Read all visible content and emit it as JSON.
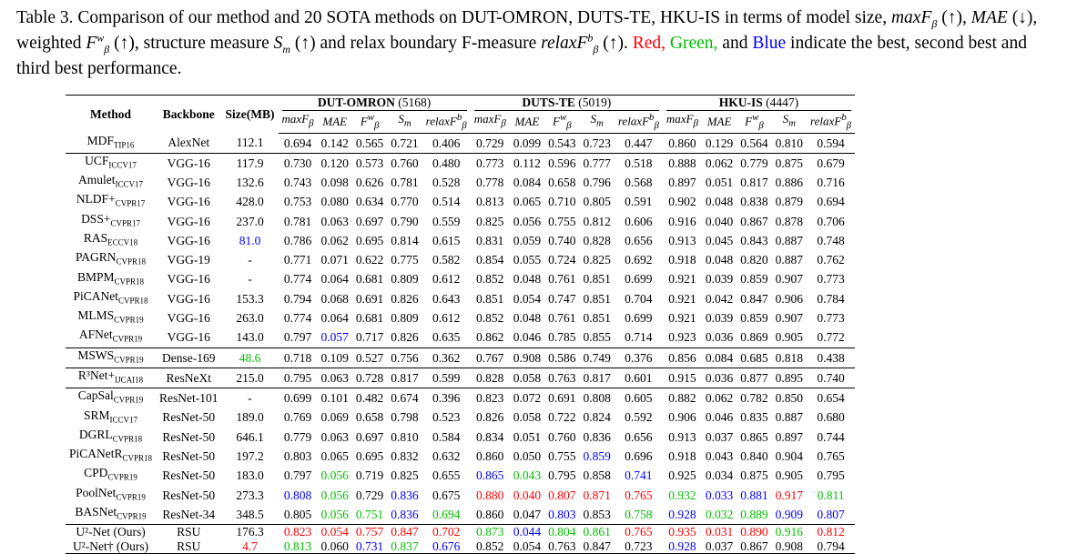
{
  "caption": {
    "lead": "Table 3.",
    "text1": "Comparison of our method and 20 SOTA methods on DUT-OMRON, DUTS-TE, HKU-IS in terms of model size,",
    "text2": "weighted",
    "text3": "structure measure",
    "text4": "and relax boundary F-measure",
    "text5": "Red,",
    "text6": "Green,",
    "text7": "and",
    "text8": "Blue",
    "text9": "indicate the best, second best and third best performance."
  },
  "table": {
    "col_method": "Method",
    "col_backbone": "Backbone",
    "col_size": "Size(MB)",
    "datasets": [
      {
        "name": "DUT-OMRON",
        "count": "(5168)"
      },
      {
        "name": "DUTS-TE",
        "count": "(5019)"
      },
      {
        "name": "HKU-IS",
        "count": "(4447)"
      }
    ],
    "metrics": [
      "maxFβ",
      "MAE",
      "Fβw",
      "Sm",
      "relaxFβb"
    ],
    "colors": {
      "red": "#ff0000",
      "green": "#00c000",
      "blue": "#0000ff"
    },
    "rows": [
      {
        "name": "MDF",
        "venue": "TIP16",
        "backbone": "AlexNet",
        "size": "112.1",
        "size_c": "",
        "v": [
          "0.694",
          "0.142",
          "0.565",
          "0.721",
          "0.406",
          "0.729",
          "0.099",
          "0.543",
          "0.723",
          "0.447",
          "0.860",
          "0.129",
          "0.564",
          "0.810",
          "0.594"
        ],
        "c": [
          "",
          "",
          "",
          "",
          "",
          "",
          "",
          "",
          "",
          "",
          "",
          "",
          "",
          "",
          ""
        ]
      },
      {
        "name": "UCF",
        "venue": "ICCV17",
        "backbone": "VGG-16",
        "size": "117.9",
        "size_c": "",
        "v": [
          "0.730",
          "0.120",
          "0.573",
          "0.760",
          "0.480",
          "0.773",
          "0.112",
          "0.596",
          "0.777",
          "0.518",
          "0.888",
          "0.062",
          "0.779",
          "0.875",
          "0.679"
        ],
        "c": [
          "",
          "",
          "",
          "",
          "",
          "",
          "",
          "",
          "",
          "",
          "",
          "",
          "",
          "",
          ""
        ]
      },
      {
        "name": "Amulet",
        "venue": "ICCV17",
        "backbone": "VGG-16",
        "size": "132.6",
        "size_c": "",
        "v": [
          "0.743",
          "0.098",
          "0.626",
          "0.781",
          "0.528",
          "0.778",
          "0.084",
          "0.658",
          "0.796",
          "0.568",
          "0.897",
          "0.051",
          "0.817",
          "0.886",
          "0.716"
        ],
        "c": [
          "",
          "",
          "",
          "",
          "",
          "",
          "",
          "",
          "",
          "",
          "",
          "",
          "",
          "",
          ""
        ]
      },
      {
        "name": "NLDF+",
        "venue": "CVPR17",
        "backbone": "VGG-16",
        "size": "428.0",
        "size_c": "",
        "v": [
          "0.753",
          "0.080",
          "0.634",
          "0.770",
          "0.514",
          "0.813",
          "0.065",
          "0.710",
          "0.805",
          "0.591",
          "0.902",
          "0.048",
          "0.838",
          "0.879",
          "0.694"
        ],
        "c": [
          "",
          "",
          "",
          "",
          "",
          "",
          "",
          "",
          "",
          "",
          "",
          "",
          "",
          "",
          ""
        ]
      },
      {
        "name": "DSS+",
        "venue": "CVPR17",
        "backbone": "VGG-16",
        "size": "237.0",
        "size_c": "",
        "v": [
          "0.781",
          "0.063",
          "0.697",
          "0.790",
          "0.559",
          "0.825",
          "0.056",
          "0.755",
          "0.812",
          "0.606",
          "0.916",
          "0.040",
          "0.867",
          "0.878",
          "0.706"
        ],
        "c": [
          "",
          "",
          "",
          "",
          "",
          "",
          "",
          "",
          "",
          "",
          "",
          "",
          "",
          "",
          ""
        ]
      },
      {
        "name": "RAS",
        "venue": "ECCV18",
        "backbone": "VGG-16",
        "size": "81.0",
        "size_c": "blue",
        "v": [
          "0.786",
          "0.062",
          "0.695",
          "0.814",
          "0.615",
          "0.831",
          "0.059",
          "0.740",
          "0.828",
          "0.656",
          "0.913",
          "0.045",
          "0.843",
          "0.887",
          "0.748"
        ],
        "c": [
          "",
          "",
          "",
          "",
          "",
          "",
          "",
          "",
          "",
          "",
          "",
          "",
          "",
          "",
          ""
        ]
      },
      {
        "name": "PAGRN",
        "venue": "CVPR18",
        "backbone": "VGG-19",
        "size": "-",
        "size_c": "",
        "v": [
          "0.771",
          "0.071",
          "0.622",
          "0.775",
          "0.582",
          "0.854",
          "0.055",
          "0.724",
          "0.825",
          "0.692",
          "0.918",
          "0.048",
          "0.820",
          "0.887",
          "0.762"
        ],
        "c": [
          "",
          "",
          "",
          "",
          "",
          "",
          "",
          "",
          "",
          "",
          "",
          "",
          "",
          "",
          ""
        ]
      },
      {
        "name": "BMPM",
        "venue": "CVPR18",
        "backbone": "VGG-16",
        "size": "-",
        "size_c": "",
        "v": [
          "0.774",
          "0.064",
          "0.681",
          "0.809",
          "0.612",
          "0.852",
          "0.048",
          "0.761",
          "0.851",
          "0.699",
          "0.921",
          "0.039",
          "0.859",
          "0.907",
          "0.773"
        ],
        "c": [
          "",
          "",
          "",
          "",
          "",
          "",
          "",
          "",
          "",
          "",
          "",
          "",
          "",
          "",
          ""
        ]
      },
      {
        "name": "PiCANet",
        "venue": "CVPR18",
        "backbone": "VGG-16",
        "size": "153.3",
        "size_c": "",
        "v": [
          "0.794",
          "0.068",
          "0.691",
          "0.826",
          "0.643",
          "0.851",
          "0.054",
          "0.747",
          "0.851",
          "0.704",
          "0.921",
          "0.042",
          "0.847",
          "0.906",
          "0.784"
        ],
        "c": [
          "",
          "",
          "",
          "",
          "",
          "",
          "",
          "",
          "",
          "",
          "",
          "",
          "",
          "",
          ""
        ]
      },
      {
        "name": "MLMS",
        "venue": "CVPR19",
        "backbone": "VGG-16",
        "size": "263.0",
        "size_c": "",
        "v": [
          "0.774",
          "0.064",
          "0.681",
          "0.809",
          "0.612",
          "0.852",
          "0.048",
          "0.761",
          "0.851",
          "0.699",
          "0.921",
          "0.039",
          "0.859",
          "0.907",
          "0.773"
        ],
        "c": [
          "",
          "",
          "",
          "",
          "",
          "",
          "",
          "",
          "",
          "",
          "",
          "",
          "",
          "",
          ""
        ]
      },
      {
        "name": "AFNet",
        "venue": "CVPR19",
        "backbone": "VGG-16",
        "size": "143.0",
        "size_c": "",
        "v": [
          "0.797",
          "0.057",
          "0.717",
          "0.826",
          "0.635",
          "0.862",
          "0.046",
          "0.785",
          "0.855",
          "0.714",
          "0.923",
          "0.036",
          "0.869",
          "0.905",
          "0.772"
        ],
        "c": [
          "",
          "blue",
          "",
          "",
          "",
          "",
          "",
          "",
          "",
          "",
          "",
          "",
          "",
          "",
          ""
        ]
      },
      {
        "name": "MSWS",
        "venue": "CVPR19",
        "backbone": "Dense-169",
        "size": "48.6",
        "size_c": "green",
        "v": [
          "0.718",
          "0.109",
          "0.527",
          "0.756",
          "0.362",
          "0.767",
          "0.908",
          "0.586",
          "0.749",
          "0.376",
          "0.856",
          "0.084",
          "0.685",
          "0.818",
          "0.438"
        ],
        "c": [
          "",
          "",
          "",
          "",
          "",
          "",
          "",
          "",
          "",
          "",
          "",
          "",
          "",
          "",
          ""
        ]
      },
      {
        "name": "R³Net+",
        "venue": "IJCAI18",
        "backbone": "ResNeXt",
        "size": "215.0",
        "size_c": "",
        "v": [
          "0.795",
          "0.063",
          "0.728",
          "0.817",
          "0.599",
          "0.828",
          "0.058",
          "0.763",
          "0.817",
          "0.601",
          "0.915",
          "0.036",
          "0.877",
          "0.895",
          "0.740"
        ],
        "c": [
          "",
          "",
          "",
          "",
          "",
          "",
          "",
          "",
          "",
          "",
          "",
          "",
          "",
          "",
          ""
        ]
      },
      {
        "name": "CapSal",
        "venue": "CVPR19",
        "backbone": "ResNet-101",
        "size": "-",
        "size_c": "",
        "v": [
          "0.699",
          "0.101",
          "0.482",
          "0.674",
          "0.396",
          "0.823",
          "0.072",
          "0.691",
          "0.808",
          "0.605",
          "0.882",
          "0.062",
          "0.782",
          "0.850",
          "0.654"
        ],
        "c": [
          "",
          "",
          "",
          "",
          "",
          "",
          "",
          "",
          "",
          "",
          "",
          "",
          "",
          "",
          ""
        ]
      },
      {
        "name": "SRM",
        "venue": "ICCV17",
        "backbone": "ResNet-50",
        "size": "189.0",
        "size_c": "",
        "v": [
          "0.769",
          "0.069",
          "0.658",
          "0.798",
          "0.523",
          "0.826",
          "0.058",
          "0.722",
          "0.824",
          "0.592",
          "0.906",
          "0.046",
          "0.835",
          "0.887",
          "0.680"
        ],
        "c": [
          "",
          "",
          "",
          "",
          "",
          "",
          "",
          "",
          "",
          "",
          "",
          "",
          "",
          "",
          ""
        ]
      },
      {
        "name": "DGRL",
        "venue": "CVPR18",
        "backbone": "ResNet-50",
        "size": "646.1",
        "size_c": "",
        "v": [
          "0.779",
          "0.063",
          "0.697",
          "0.810",
          "0.584",
          "0.834",
          "0.051",
          "0.760",
          "0.836",
          "0.656",
          "0.913",
          "0.037",
          "0.865",
          "0.897",
          "0.744"
        ],
        "c": [
          "",
          "",
          "",
          "",
          "",
          "",
          "",
          "",
          "",
          "",
          "",
          "",
          "",
          "",
          ""
        ]
      },
      {
        "name": "PiCANetR",
        "venue": "CVPR18",
        "backbone": "ResNet-50",
        "size": "197.2",
        "size_c": "",
        "v": [
          "0.803",
          "0.065",
          "0.695",
          "0.832",
          "0.632",
          "0.860",
          "0.050",
          "0.755",
          "0.859",
          "0.696",
          "0.918",
          "0.043",
          "0.840",
          "0.904",
          "0.765"
        ],
        "c": [
          "",
          "",
          "",
          "",
          "",
          "",
          "",
          "",
          "blue",
          "",
          "",
          "",
          "",
          "",
          ""
        ]
      },
      {
        "name": "CPD",
        "venue": "CVPR19",
        "backbone": "ResNet-50",
        "size": "183.0",
        "size_c": "",
        "v": [
          "0.797",
          "0.056",
          "0.719",
          "0.825",
          "0.655",
          "0.865",
          "0.043",
          "0.795",
          "0.858",
          "0.741",
          "0.925",
          "0.034",
          "0.875",
          "0.905",
          "0.795"
        ],
        "c": [
          "",
          "green",
          "",
          "",
          "",
          "blue",
          "green",
          "",
          "",
          "blue",
          "",
          "",
          "",
          "",
          ""
        ]
      },
      {
        "name": "PoolNet",
        "venue": "CVPR19",
        "backbone": "ResNet-50",
        "size": "273.3",
        "size_c": "",
        "v": [
          "0.808",
          "0.056",
          "0.729",
          "0.836",
          "0.675",
          "0.880",
          "0.040",
          "0.807",
          "0.871",
          "0.765",
          "0.932",
          "0.033",
          "0.881",
          "0.917",
          "0.811"
        ],
        "c": [
          "blue",
          "green",
          "",
          "blue",
          "",
          "red",
          "red",
          "red",
          "red",
          "red",
          "green",
          "blue",
          "blue",
          "red",
          "green"
        ]
      },
      {
        "name": "BASNet",
        "venue": "CVPR19",
        "backbone": "ResNet-34",
        "size": "348.5",
        "size_c": "",
        "v": [
          "0.805",
          "0.056",
          "0.751",
          "0.836",
          "0.694",
          "0.860",
          "0.047",
          "0.803",
          "0.853",
          "0.758",
          "0.928",
          "0.032",
          "0.889",
          "0.909",
          "0.807"
        ],
        "c": [
          "",
          "green",
          "green",
          "blue",
          "green",
          "",
          "",
          "blue",
          "",
          "green",
          "blue",
          "green",
          "green",
          "blue",
          "blue"
        ]
      },
      {
        "name": "U²-Net (Ours)",
        "venue": "",
        "backbone": "RSU",
        "size": "176.3",
        "size_c": "",
        "v": [
          "0.823",
          "0.054",
          "0.757",
          "0.847",
          "0.702",
          "0.873",
          "0.044",
          "0.804",
          "0.861",
          "0.765",
          "0.935",
          "0.031",
          "0.890",
          "0.916",
          "0.812"
        ],
        "c": [
          "red",
          "red",
          "red",
          "red",
          "red",
          "green",
          "blue",
          "green",
          "green",
          "red",
          "red",
          "red",
          "red",
          "green",
          "red"
        ]
      },
      {
        "name": "U²-Net† (Ours)",
        "venue": "",
        "backbone": "RSU",
        "size": "4.7",
        "size_c": "red",
        "v": [
          "0.813",
          "0.060",
          "0.731",
          "0.837",
          "0.676",
          "0.852",
          "0.054",
          "0.763",
          "0.847",
          "0.723",
          "0.928",
          "0.037",
          "0.867",
          "0.908",
          "0.794"
        ],
        "c": [
          "green",
          "",
          "blue",
          "green",
          "blue",
          "",
          "",
          "",
          "",
          "",
          "blue",
          "",
          "",
          "",
          ""
        ]
      }
    ]
  }
}
